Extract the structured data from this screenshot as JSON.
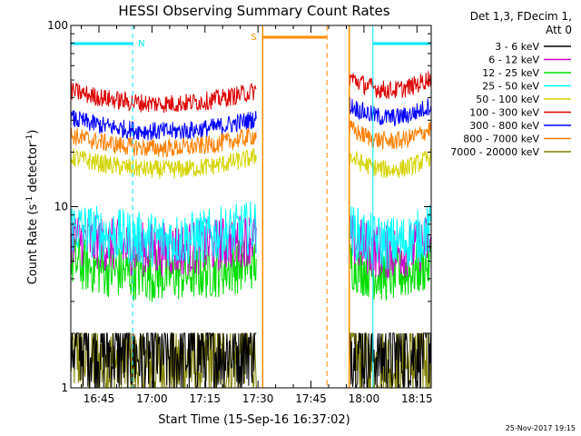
{
  "chart_data": {
    "type": "line",
    "title": "HESSI Observing Summary Count Rates",
    "xlabel": "Start Time (15-Sep-16 16:37:02)",
    "ylabel_main": "Count Rate (s",
    "ylabel_sup1": "-1",
    "ylabel_mid": " detector",
    "ylabel_sup2": "-1",
    "ylabel_end": ")",
    "yscale": "log",
    "ylim": [
      1,
      100
    ],
    "xlim_minutes": [
      0,
      102
    ],
    "x_ticks": [
      "16:45",
      "17:00",
      "17:15",
      "17:30",
      "17:45",
      "18:00",
      "18:15"
    ],
    "y_ticks": [
      "1",
      "10",
      "100"
    ],
    "legend_header": [
      "Det 1,3, FDecim 1,",
      "Att 0"
    ],
    "timestamp": "25-Nov-2017 19:15",
    "annotations": [
      {
        "label": "N",
        "color": "#00e5ff",
        "kind": "night"
      },
      {
        "label": "S",
        "color": "#ff8c00",
        "kind": "saa"
      }
    ],
    "night_intervals_min": [
      [
        0,
        17.5
      ],
      [
        85.5,
        102
      ]
    ],
    "saa_interval_min": [
      54.3,
      72.5
    ],
    "data_segments_min": [
      [
        0,
        52.5
      ],
      [
        78.8,
        102
      ]
    ],
    "series": [
      {
        "name": "3 - 6 keV",
        "color": "#000000",
        "level": [
          1.5,
          1.5
        ]
      },
      {
        "name": "6 - 12 keV",
        "color": "#cc00cc",
        "level": [
          5.8,
          5.6
        ]
      },
      {
        "name": "12 - 25 keV",
        "color": "#00dd00",
        "level": [
          4.2,
          4.2
        ]
      },
      {
        "name": "25 - 50 keV",
        "color": "#00ffff",
        "level": [
          6.6,
          6.3
        ]
      },
      {
        "name": "50 - 100 keV",
        "color": "#d4d400",
        "level": [
          16,
          16
        ]
      },
      {
        "name": "100 - 300 keV",
        "color": "#dd0000",
        "level": [
          37,
          44
        ]
      },
      {
        "name": "300 - 800 keV",
        "color": "#0000ff",
        "level": [
          26,
          31
        ]
      },
      {
        "name": "800 - 7000 keV",
        "color": "#ff7f00",
        "level": [
          21,
          23
        ]
      },
      {
        "name": "7000 - 20000 keV",
        "color": "#808000",
        "level": [
          1.3,
          1.3
        ]
      }
    ]
  }
}
